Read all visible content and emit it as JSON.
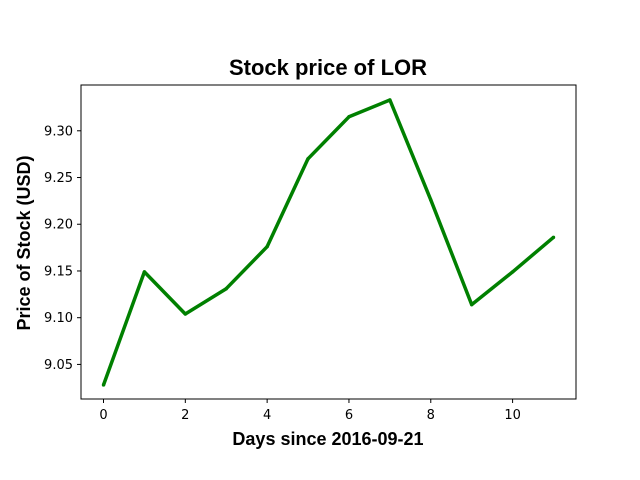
{
  "chart_data": {
    "type": "line",
    "title": "Stock price of LOR",
    "xlabel": "Days since 2016-09-21",
    "ylabel": "Price of Stock (USD)",
    "x": [
      0,
      1,
      2,
      3,
      4,
      5,
      6,
      7,
      8,
      9,
      10,
      11
    ],
    "series": [
      {
        "values": [
          9.028,
          9.149,
          9.104,
          9.131,
          9.176,
          9.27,
          9.315,
          9.333,
          9.226,
          9.114,
          9.149,
          9.186
        ],
        "color": "#008000"
      }
    ],
    "xlim": [
      -0.55,
      11.55
    ],
    "ylim": [
      9.013,
      9.349
    ],
    "xticks": [
      0,
      2,
      4,
      6,
      8,
      10
    ],
    "xtick_labels": [
      "0",
      "2",
      "4",
      "6",
      "8",
      "10"
    ],
    "yticks": [
      9.05,
      9.1,
      9.15,
      9.2,
      9.25,
      9.3
    ],
    "ytick_labels": [
      "9.05",
      "9.10",
      "9.15",
      "9.20",
      "9.25",
      "9.30"
    ],
    "grid": false,
    "legend": "none"
  }
}
